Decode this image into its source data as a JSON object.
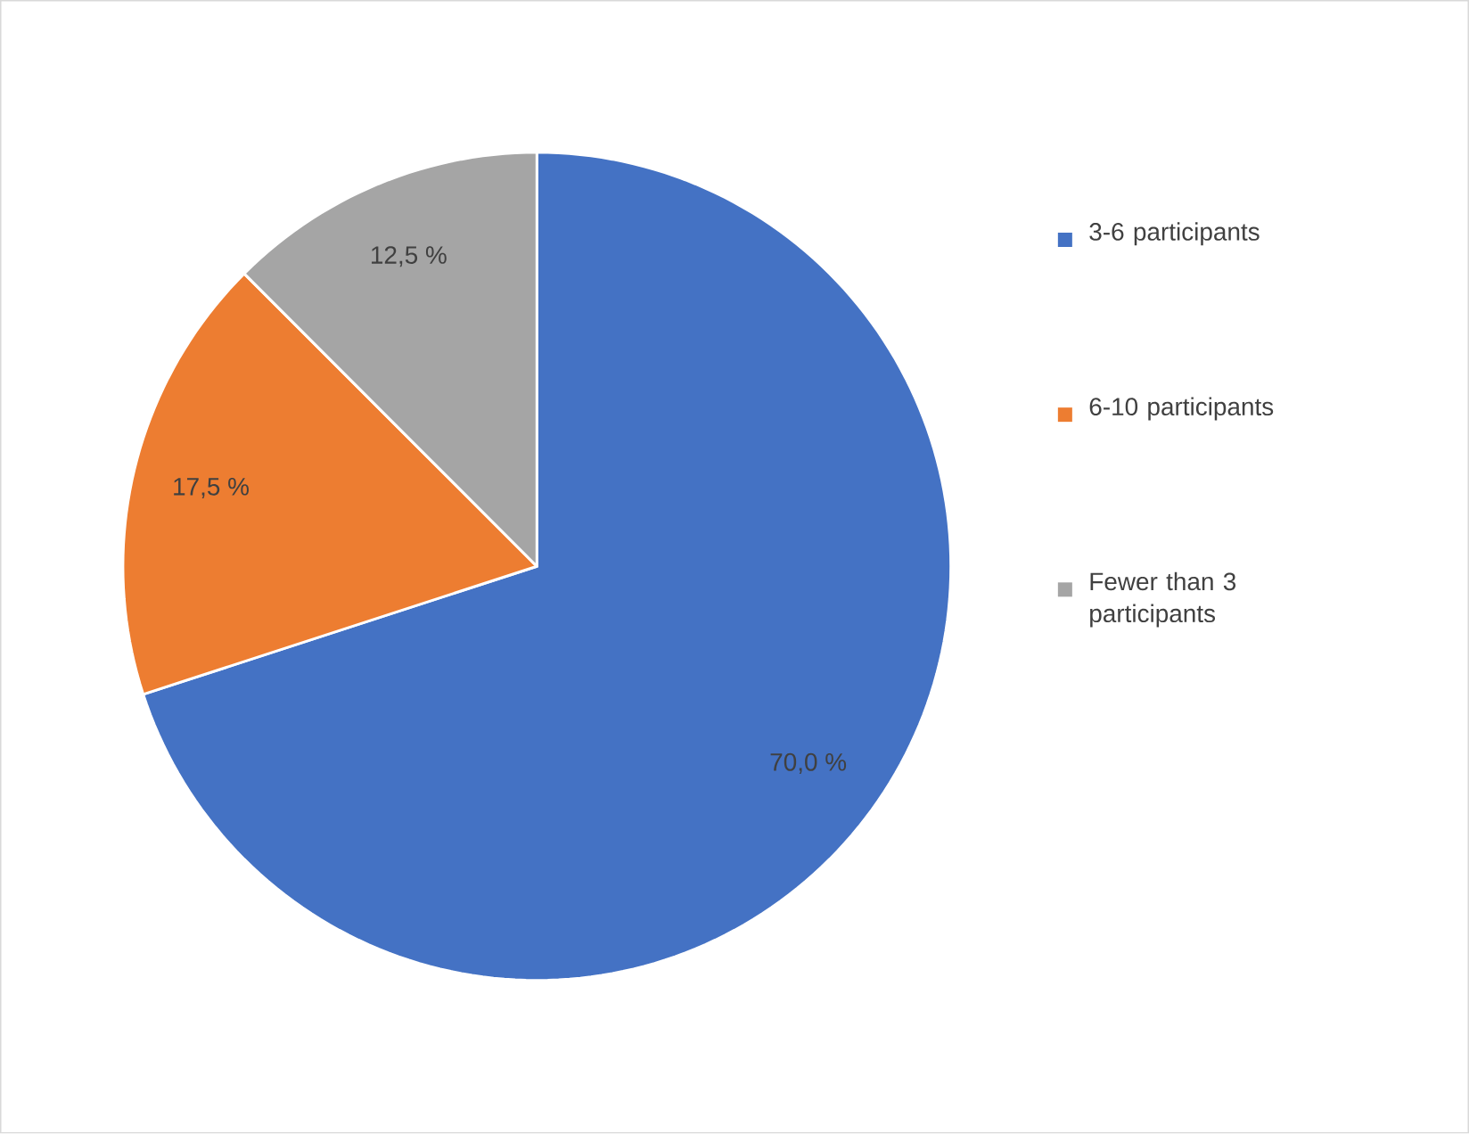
{
  "chart_data": {
    "type": "pie",
    "categories": [
      "3-6 participants",
      "6-10 participants",
      "Fewer than 3 participants"
    ],
    "values": [
      70.0,
      17.5,
      12.5
    ],
    "colors": [
      "#4472c4",
      "#ed7d31",
      "#a5a5a5"
    ],
    "value_labels": [
      "70,0 %",
      "17,5 %",
      "12,5 %"
    ],
    "legend": "right"
  }
}
